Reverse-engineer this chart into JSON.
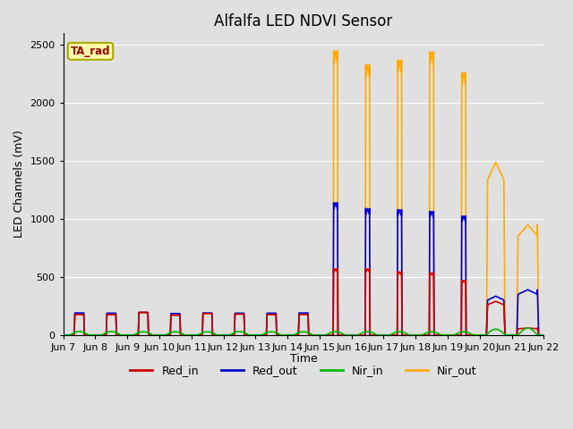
{
  "title": "Alfalfa LED NDVI Sensor",
  "ylabel": "LED Channels (mV)",
  "xlabel": "Time",
  "ylim": [
    0,
    2600
  ],
  "background_color": "#e0e0e0",
  "plot_bg_color": "#e0e0e0",
  "legend_label": "TA_rad",
  "series": {
    "Red_in": {
      "color": "#cc0000",
      "lw": 1.2
    },
    "Red_out": {
      "color": "#0000cc",
      "lw": 1.2
    },
    "Nir_in": {
      "color": "#00bb00",
      "lw": 1.2
    },
    "Nir_out": {
      "color": "#ffaa00",
      "lw": 1.2
    }
  },
  "x_tick_labels": [
    "Jun 7",
    "Jun 8",
    "Jun 9",
    "Jun 10",
    "Jun 11",
    "Jun 12",
    "Jun 13",
    "Jun 14",
    "Jun 15",
    "Jun 16",
    "Jun 17",
    "Jun 18",
    "Jun 19",
    "Jun 20",
    "Jun 21",
    "Jun 22"
  ],
  "x_tick_positions": [
    0,
    1,
    2,
    3,
    4,
    5,
    6,
    7,
    8,
    9,
    10,
    11,
    12,
    13,
    14,
    15
  ],
  "pulses": [
    {
      "day": 0,
      "ri": 175,
      "ro": 190,
      "ni": 30,
      "no": 185,
      "pw": 0.28,
      "shape": "rect"
    },
    {
      "day": 1,
      "ri": 175,
      "ro": 188,
      "ni": 30,
      "no": 185,
      "pw": 0.28,
      "shape": "rect"
    },
    {
      "day": 2,
      "ri": 195,
      "ro": 195,
      "ni": 28,
      "no": 190,
      "pw": 0.28,
      "shape": "rect"
    },
    {
      "day": 3,
      "ri": 170,
      "ro": 185,
      "ni": 28,
      "no": 180,
      "pw": 0.28,
      "shape": "rect"
    },
    {
      "day": 4,
      "ri": 185,
      "ro": 190,
      "ni": 28,
      "no": 185,
      "pw": 0.28,
      "shape": "rect"
    },
    {
      "day": 5,
      "ri": 180,
      "ro": 188,
      "ni": 30,
      "no": 182,
      "pw": 0.28,
      "shape": "rect"
    },
    {
      "day": 6,
      "ri": 175,
      "ro": 188,
      "ni": 28,
      "no": 182,
      "pw": 0.28,
      "shape": "rect"
    },
    {
      "day": 7,
      "ri": 175,
      "ro": 190,
      "ni": 28,
      "no": 185,
      "pw": 0.28,
      "shape": "rect"
    },
    {
      "day": 8,
      "ri": 570,
      "ro": 1140,
      "ni": 30,
      "no": 2450,
      "pw": 0.28,
      "shape": "spike"
    },
    {
      "day": 9,
      "ri": 570,
      "ro": 1090,
      "ni": 30,
      "no": 2330,
      "pw": 0.28,
      "shape": "spike"
    },
    {
      "day": 10,
      "ri": 545,
      "ro": 1080,
      "ni": 30,
      "no": 2370,
      "pw": 0.28,
      "shape": "spike"
    },
    {
      "day": 11,
      "ri": 535,
      "ro": 1065,
      "ni": 28,
      "no": 2440,
      "pw": 0.28,
      "shape": "spike"
    },
    {
      "day": 12,
      "ri": 470,
      "ro": 1025,
      "ni": 28,
      "no": 2260,
      "pw": 0.28,
      "shape": "spike"
    },
    {
      "day": 13,
      "ri": 290,
      "ro": 335,
      "ni": 50,
      "no": 1490,
      "pw": 0.5,
      "shape": "spike_wide"
    },
    {
      "day": 14,
      "ri": 60,
      "ro": 390,
      "ni": 60,
      "no": 950,
      "pw": 0.6,
      "shape": "spike_wide"
    },
    {
      "day": 15,
      "ri": 0,
      "ro": 0,
      "ni": 0,
      "no": 0,
      "pw": 0.1,
      "shape": "rect"
    }
  ],
  "nir_in_base": 30,
  "nir_in_hump_pw": 0.6,
  "nir_in_hump_peak": 35
}
